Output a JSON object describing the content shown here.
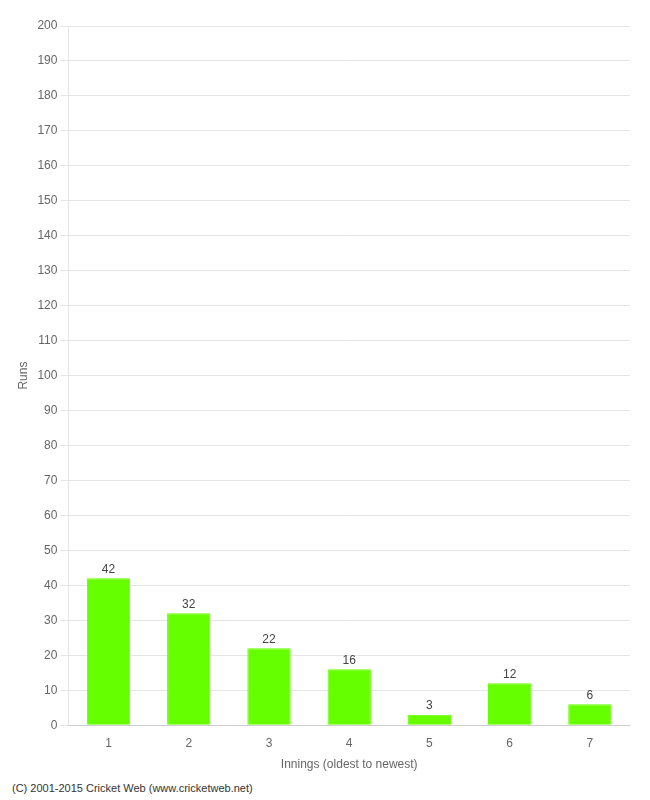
{
  "chart_data": {
    "type": "bar",
    "categories": [
      "1",
      "2",
      "3",
      "4",
      "5",
      "6",
      "7"
    ],
    "values": [
      42,
      32,
      22,
      16,
      3,
      12,
      6
    ],
    "color": "#66ff00",
    "xlabel": "Innings (oldest to newest)",
    "ylabel": "Runs",
    "ylim": [
      0,
      200
    ],
    "yticks": [
      0,
      10,
      20,
      30,
      40,
      50,
      60,
      70,
      80,
      90,
      100,
      110,
      120,
      130,
      140,
      150,
      160,
      170,
      180,
      190,
      200
    ],
    "grid": true,
    "data_labels": true,
    "annotations": [
      "(C) 2001-2015 Cricket Web (www.cricketweb.net)"
    ]
  }
}
